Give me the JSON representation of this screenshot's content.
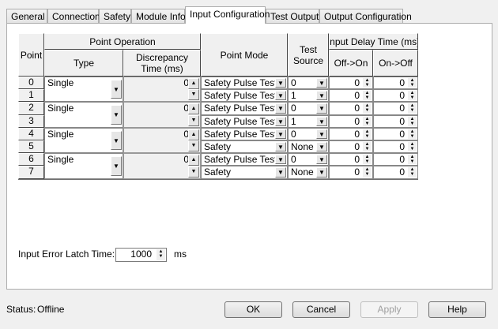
{
  "tabs": [
    {
      "label": "General"
    },
    {
      "label": "Connection"
    },
    {
      "label": "Safety"
    },
    {
      "label": "Module Info"
    },
    {
      "label": "Input Configuration",
      "active": true
    },
    {
      "label": "Test Output"
    },
    {
      "label": "Output Configuration"
    }
  ],
  "table": {
    "headers": {
      "point": "Point",
      "point_operation": "Point Operation",
      "type": "Type",
      "discrepancy": "Discrepancy Time (ms)",
      "point_mode": "Point Mode",
      "test_source": "Test Source",
      "input_delay": "Input Delay Time (ms)",
      "off_on": "Off->On",
      "on_off": "On->Off"
    },
    "pairs": [
      {
        "type": "Single",
        "discrepancy": "0"
      },
      {
        "type": "Single",
        "discrepancy": "0"
      },
      {
        "type": "Single",
        "discrepancy": "0"
      },
      {
        "type": "Single",
        "discrepancy": "0"
      }
    ],
    "rows": [
      {
        "point": "0",
        "mode": "Safety Pulse Test",
        "source": "0",
        "off_on": "0",
        "on_off": "0"
      },
      {
        "point": "1",
        "mode": "Safety Pulse Test",
        "source": "1",
        "off_on": "0",
        "on_off": "0"
      },
      {
        "point": "2",
        "mode": "Safety Pulse Test",
        "source": "0",
        "off_on": "0",
        "on_off": "0"
      },
      {
        "point": "3",
        "mode": "Safety Pulse Test",
        "source": "1",
        "off_on": "0",
        "on_off": "0"
      },
      {
        "point": "4",
        "mode": "Safety Pulse Test",
        "source": "0",
        "off_on": "0",
        "on_off": "0"
      },
      {
        "point": "5",
        "mode": "Safety",
        "source": "None",
        "off_on": "0",
        "on_off": "0"
      },
      {
        "point": "6",
        "mode": "Safety Pulse Test",
        "source": "0",
        "off_on": "0",
        "on_off": "0"
      },
      {
        "point": "7",
        "mode": "Safety",
        "source": "None",
        "off_on": "0",
        "on_off": "0"
      }
    ]
  },
  "latch": {
    "label": "Input Error Latch Time:",
    "value": "1000",
    "unit": "ms"
  },
  "status": {
    "label": "Status:",
    "value": "Offline"
  },
  "buttons": {
    "ok": "OK",
    "cancel": "Cancel",
    "apply": "Apply",
    "help": "Help"
  }
}
